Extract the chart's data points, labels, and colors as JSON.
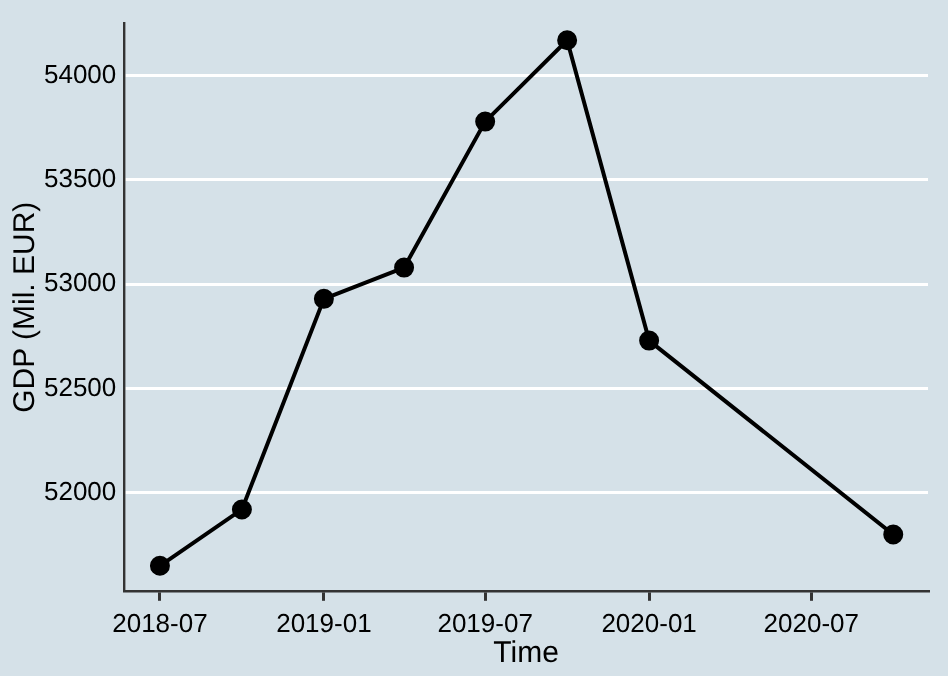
{
  "chart_data": {
    "type": "line",
    "xlabel": "Time",
    "ylabel": "GDP (Mil. EUR)",
    "x": [
      "2018-07",
      "2018-10",
      "2019-01",
      "2019-04",
      "2019-07",
      "2019-10",
      "2020-01",
      "2020-10"
    ],
    "series": [
      {
        "color": "#000000",
        "values": [
          51650,
          51920,
          52930,
          53080,
          53780,
          54170,
          52730,
          51800
        ]
      }
    ],
    "xlim": [
      "2018-05-22",
      "2020-11-09"
    ],
    "xticks": [
      "2018-07",
      "2019-01",
      "2019-07",
      "2020-01",
      "2020-07"
    ],
    "ylim": [
      51530,
      54250
    ],
    "yticks": [
      52000,
      52500,
      53000,
      53500,
      54000
    ],
    "grid": "y",
    "legend": false,
    "marker": "circle",
    "line_style": "solid"
  }
}
